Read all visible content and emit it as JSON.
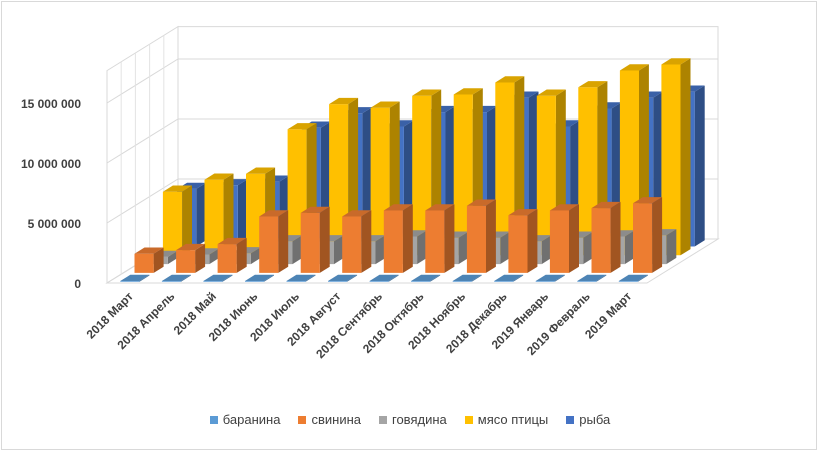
{
  "chart_data": {
    "type": "bar",
    "subtype": "3d-clustered-column",
    "title": "",
    "xlabel": "",
    "ylabel": "",
    "ylim": [
      0,
      15000000
    ],
    "yticks": [
      {
        "value": 0,
        "label": "0"
      },
      {
        "value": 5000000,
        "label": "5 000 000"
      },
      {
        "value": 10000000,
        "label": "10 000 000"
      },
      {
        "value": 15000000,
        "label": "15 000 000"
      }
    ],
    "grid": true,
    "legend": "bottom",
    "categories": [
      "2018 Март",
      "2018 Апрель",
      "2018 Май",
      "2018 Июнь",
      "2018 Июль",
      "2018 Август",
      "2018 Сентябрь",
      "2018 Октябрь",
      "2018 Ноябрь",
      "2018 Декабрь",
      "2019 Январь",
      "2019 Февраль",
      "2019 Март"
    ],
    "series": [
      {
        "name": "баранина",
        "color": "#5b9bd5",
        "values": [
          20000,
          25000,
          30000,
          40000,
          45000,
          45000,
          45000,
          45000,
          45000,
          45000,
          40000,
          40000,
          40000
        ]
      },
      {
        "name": "свинина",
        "color": "#ed7d31",
        "values": [
          1600000,
          1900000,
          2400000,
          4700000,
          5000000,
          4700000,
          5200000,
          5200000,
          5600000,
          4800000,
          5200000,
          5400000,
          5800000
        ]
      },
      {
        "name": "говядина",
        "color": "#a5a5a5",
        "values": [
          600000,
          800000,
          900000,
          1900000,
          1900000,
          1900000,
          2300000,
          2200000,
          2200000,
          1900000,
          2200000,
          2300000,
          2400000
        ]
      },
      {
        "name": "мясо птицы",
        "color": "#ffc000",
        "values": [
          5300000,
          6300000,
          6800000,
          10500000,
          12600000,
          12300000,
          13300000,
          13400000,
          14400000,
          13300000,
          14000000,
          15400000,
          15900000
        ]
      },
      {
        "name": "рыба",
        "color": "#4472c4",
        "values": [
          4800000,
          5100000,
          5400000,
          9900000,
          11100000,
          10000000,
          11200000,
          11200000,
          12400000,
          10000000,
          11500000,
          12400000,
          12900000
        ]
      }
    ]
  }
}
